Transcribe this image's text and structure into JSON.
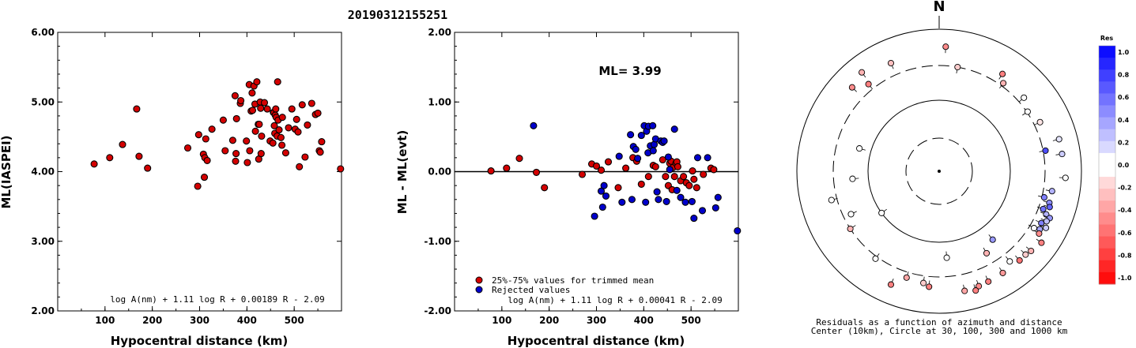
{
  "title": "20190312155251",
  "chart_data": [
    {
      "type": "scatter",
      "xlabel": "Hypocentral distance (km)",
      "ylabel": "ML(IASPEI)",
      "xlim": [
        0,
        600
      ],
      "ylim": [
        2.0,
        6.0
      ],
      "x_ticks": [
        "100",
        "200",
        "300",
        "400",
        "500"
      ],
      "y_ticks": [
        "2.00",
        "3.00",
        "4.00",
        "5.00",
        "6.00"
      ],
      "formula": "log A(nm) + 1.11 log R + 0.00189 R - 2.09",
      "series": [
        {
          "color": "#d40000",
          "points": [
            [
              77,
              4.11
            ],
            [
              110,
              4.2
            ],
            [
              137,
              4.39
            ],
            [
              167,
              4.9
            ],
            [
              172,
              4.22
            ],
            [
              190,
              4.05
            ],
            [
              275,
              4.34
            ],
            [
              296,
              3.79
            ],
            [
              298,
              4.53
            ],
            [
              308,
              4.25
            ],
            [
              310,
              3.92
            ],
            [
              311,
              4.2
            ],
            [
              313,
              4.47
            ],
            [
              316,
              4.16
            ],
            [
              326,
              4.61
            ],
            [
              350,
              4.74
            ],
            [
              354,
              4.3
            ],
            [
              370,
              4.45
            ],
            [
              375,
              5.09
            ],
            [
              376,
              4.15
            ],
            [
              377,
              4.26
            ],
            [
              378,
              4.76
            ],
            [
              386,
              4.98
            ],
            [
              387,
              5.02
            ],
            [
              399,
              4.44
            ],
            [
              401,
              4.13
            ],
            [
              405,
              5.25
            ],
            [
              406,
              4.3
            ],
            [
              409,
              4.87
            ],
            [
              411,
              5.13
            ],
            [
              412,
              4.88
            ],
            [
              415,
              5.23
            ],
            [
              417,
              4.97
            ],
            [
              418,
              4.58
            ],
            [
              421,
              5.29
            ],
            [
              424,
              4.68
            ],
            [
              425,
              4.18
            ],
            [
              426,
              4.68
            ],
            [
              428,
              5.0
            ],
            [
              429,
              4.91
            ],
            [
              430,
              4.26
            ],
            [
              431,
              4.51
            ],
            [
              437,
              4.99
            ],
            [
              443,
              4.9
            ],
            [
              449,
              4.44
            ],
            [
              455,
              4.41
            ],
            [
              456,
              4.85
            ],
            [
              457,
              4.85
            ],
            [
              458,
              4.66
            ],
            [
              459,
              4.55
            ],
            [
              460,
              4.81
            ],
            [
              461,
              4.9
            ],
            [
              462,
              4.78
            ],
            [
              464,
              4.51
            ],
            [
              465,
              5.29
            ],
            [
              466,
              4.74
            ],
            [
              468,
              4.6
            ],
            [
              472,
              4.49
            ],
            [
              474,
              4.38
            ],
            [
              475,
              4.78
            ],
            [
              482,
              4.27
            ],
            [
              488,
              4.63
            ],
            [
              495,
              4.9
            ],
            [
              502,
              4.61
            ],
            [
              505,
              4.75
            ],
            [
              508,
              4.57
            ],
            [
              511,
              4.07
            ],
            [
              517,
              4.96
            ],
            [
              523,
              4.21
            ],
            [
              528,
              4.67
            ],
            [
              537,
              4.98
            ],
            [
              545,
              4.82
            ],
            [
              550,
              4.84
            ],
            [
              553,
              4.3
            ],
            [
              555,
              4.28
            ],
            [
              558,
              4.43
            ],
            [
              598,
              4.04
            ]
          ]
        }
      ]
    },
    {
      "type": "scatter",
      "xlabel": "Hypocentral distance (km)",
      "ylabel": "ML - ML(evt)",
      "xlim": [
        0,
        600
      ],
      "ylim": [
        -2.0,
        2.0
      ],
      "x_ticks": [
        "100",
        "200",
        "300",
        "400",
        "500"
      ],
      "y_ticks": [
        "-2.00",
        "-1.00",
        "0.00",
        "1.00",
        "2.00"
      ],
      "annotation": "ML= 3.99",
      "formula": "log A(nm) + 1.11 log R + 0.00041 R - 2.09",
      "legend": [
        "25%-75% values for trimmed mean",
        "Rejected values"
      ],
      "series": [
        {
          "name": "25%-75% values for trimmed mean",
          "color": "#d40000",
          "points": [
            [
              77,
              0.01
            ],
            [
              110,
              0.05
            ],
            [
              137,
              0.19
            ],
            [
              173,
              -0.01
            ],
            [
              190,
              -0.23
            ],
            [
              270,
              -0.04
            ],
            [
              290,
              0.11
            ],
            [
              300,
              0.08
            ],
            [
              310,
              0.02
            ],
            [
              325,
              0.14
            ],
            [
              346,
              -0.23
            ],
            [
              362,
              0.05
            ],
            [
              377,
              0.2
            ],
            [
              385,
              0.15
            ],
            [
              395,
              -0.18
            ],
            [
              410,
              -0.07
            ],
            [
              420,
              0.09
            ],
            [
              425,
              0.07
            ],
            [
              440,
              0.17
            ],
            [
              446,
              -0.07
            ],
            [
              452,
              -0.2
            ],
            [
              455,
              0.12
            ],
            [
              458,
              0.15
            ],
            [
              460,
              -0.26
            ],
            [
              462,
              0.06
            ],
            [
              465,
              -0.07
            ],
            [
              468,
              0.12
            ],
            [
              470,
              0.14
            ],
            [
              472,
              0.07
            ],
            [
              478,
              -0.13
            ],
            [
              484,
              -0.07
            ],
            [
              490,
              -0.16
            ],
            [
              496,
              -0.2
            ],
            [
              503,
              0.01
            ],
            [
              506,
              -0.11
            ],
            [
              512,
              -0.23
            ],
            [
              526,
              -0.04
            ],
            [
              542,
              0.05
            ],
            [
              548,
              0.03
            ]
          ]
        },
        {
          "name": "Rejected values",
          "color": "#0000cc",
          "points": [
            [
              167,
              0.66
            ],
            [
              296,
              -0.64
            ],
            [
              310,
              -0.28
            ],
            [
              313,
              -0.51
            ],
            [
              316,
              -0.2
            ],
            [
              320,
              -0.35
            ],
            [
              348,
              0.22
            ],
            [
              354,
              -0.44
            ],
            [
              372,
              0.53
            ],
            [
              375,
              -0.4
            ],
            [
              378,
              0.36
            ],
            [
              383,
              0.32
            ],
            [
              387,
              0.19
            ],
            [
              395,
              0.52
            ],
            [
              401,
              0.66
            ],
            [
              404,
              -0.44
            ],
            [
              406,
              0.58
            ],
            [
              409,
              0.27
            ],
            [
              410,
              0.65
            ],
            [
              414,
              0.37
            ],
            [
              419,
              0.66
            ],
            [
              420,
              0.3
            ],
            [
              422,
              0.39
            ],
            [
              425,
              0.47
            ],
            [
              428,
              -0.29
            ],
            [
              431,
              -0.4
            ],
            [
              436,
              0.44
            ],
            [
              440,
              0.42
            ],
            [
              443,
              0.44
            ],
            [
              448,
              -0.43
            ],
            [
              452,
              0.21
            ],
            [
              455,
              0.03
            ],
            [
              465,
              0.61
            ],
            [
              470,
              -0.27
            ],
            [
              478,
              -0.37
            ],
            [
              488,
              -0.44
            ],
            [
              502,
              -0.43
            ],
            [
              506,
              -0.67
            ],
            [
              514,
              0.2
            ],
            [
              524,
              -0.56
            ],
            [
              535,
              0.2
            ],
            [
              552,
              -0.52
            ],
            [
              557,
              -0.37
            ],
            [
              598,
              -0.85
            ]
          ]
        }
      ]
    }
  ],
  "polar": {
    "north_label": "N",
    "caption_line1": "Residuals as a function of azimuth and distance",
    "caption_line2": "Center (10km), Circle at 30, 100, 300 and 1000 km",
    "colorbar_title": "Res",
    "colorbar_ticks": [
      "1.0",
      "0.8",
      "0.6",
      "0.4",
      "0.2",
      "0.0",
      "-0.2",
      "-0.4",
      "-0.6",
      "-0.8",
      "-1.0"
    ],
    "stations": [
      {
        "az": 3,
        "r": 158,
        "res": -0.45
      },
      {
        "az": 10,
        "r": 134,
        "res": -0.2
      },
      {
        "az": 36,
        "r": 138,
        "res": -0.3
      },
      {
        "az": 33,
        "r": 147,
        "res": -0.5
      },
      {
        "az": 49,
        "r": 142,
        "res": 0.05
      },
      {
        "az": 56,
        "r": 135,
        "res": 0.0
      },
      {
        "az": 64,
        "r": 142,
        "res": -0.1
      },
      {
        "az": 75,
        "r": 157,
        "res": 0.1
      },
      {
        "az": 79,
        "r": 137,
        "res": 0.7
      },
      {
        "az": 82,
        "r": 157,
        "res": 0.2
      },
      {
        "az": 93,
        "r": 160,
        "res": 0.0
      },
      {
        "az": 100,
        "r": 145,
        "res": 0.3
      },
      {
        "az": 104,
        "r": 137,
        "res": 0.5
      },
      {
        "az": 106,
        "r": 145,
        "res": 0.45
      },
      {
        "az": 108,
        "r": 147,
        "res": 0.6
      },
      {
        "az": 110,
        "r": 140,
        "res": 0.55
      },
      {
        "az": 112,
        "r": 146,
        "res": 0.3
      },
      {
        "az": 113,
        "r": 152,
        "res": 0.4
      },
      {
        "az": 115,
        "r": 150,
        "res": 0.25
      },
      {
        "az": 117,
        "r": 145,
        "res": 0.5
      },
      {
        "az": 118,
        "r": 153,
        "res": 0.2
      },
      {
        "az": 120,
        "r": 147,
        "res": 0.35
      },
      {
        "az": 121,
        "r": 140,
        "res": 0.0
      },
      {
        "az": 122,
        "r": 149,
        "res": -0.45
      },
      {
        "az": 125,
        "r": 158,
        "res": -0.5
      },
      {
        "az": 131,
        "r": 154,
        "res": -0.3
      },
      {
        "az": 134,
        "r": 152,
        "res": -0.2
      },
      {
        "az": 138,
        "r": 152,
        "res": -0.55
      },
      {
        "az": 142,
        "r": 145,
        "res": 0.0
      },
      {
        "az": 148,
        "r": 152,
        "res": -0.4
      },
      {
        "az": 156,
        "r": 153,
        "res": -0.5
      },
      {
        "az": 161,
        "r": 154,
        "res": -0.45
      },
      {
        "az": 163,
        "r": 158,
        "res": -0.5
      },
      {
        "az": 168,
        "r": 155,
        "res": -0.35
      },
      {
        "az": 188,
        "r": 143,
        "res": -0.2
      },
      {
        "az": 185,
        "r": 147,
        "res": -0.5
      },
      {
        "az": 175,
        "r": 110,
        "res": 0.0
      },
      {
        "az": 197,
        "r": 141,
        "res": -0.35
      },
      {
        "az": 203,
        "r": 156,
        "res": -0.5
      },
      {
        "az": 216,
        "r": 137,
        "res": 0.0
      },
      {
        "az": 237,
        "r": 134,
        "res": -0.3
      },
      {
        "az": 244,
        "r": 124,
        "res": 0.0
      },
      {
        "az": 234,
        "r": 90,
        "res": 0.0
      },
      {
        "az": 255,
        "r": 141,
        "res": 0.0
      },
      {
        "az": 265,
        "r": 110,
        "res": 0.0
      },
      {
        "az": 286,
        "r": 105,
        "res": 0.0
      },
      {
        "az": 314,
        "r": 153,
        "res": -0.45
      },
      {
        "az": 321,
        "r": 142,
        "res": -0.5
      },
      {
        "az": 322,
        "r": 159,
        "res": -0.3
      },
      {
        "az": 336,
        "r": 150,
        "res": -0.25
      },
      {
        "az": 142,
        "r": 110,
        "res": 0.4
      },
      {
        "az": 150,
        "r": 120,
        "res": -0.3
      }
    ]
  }
}
